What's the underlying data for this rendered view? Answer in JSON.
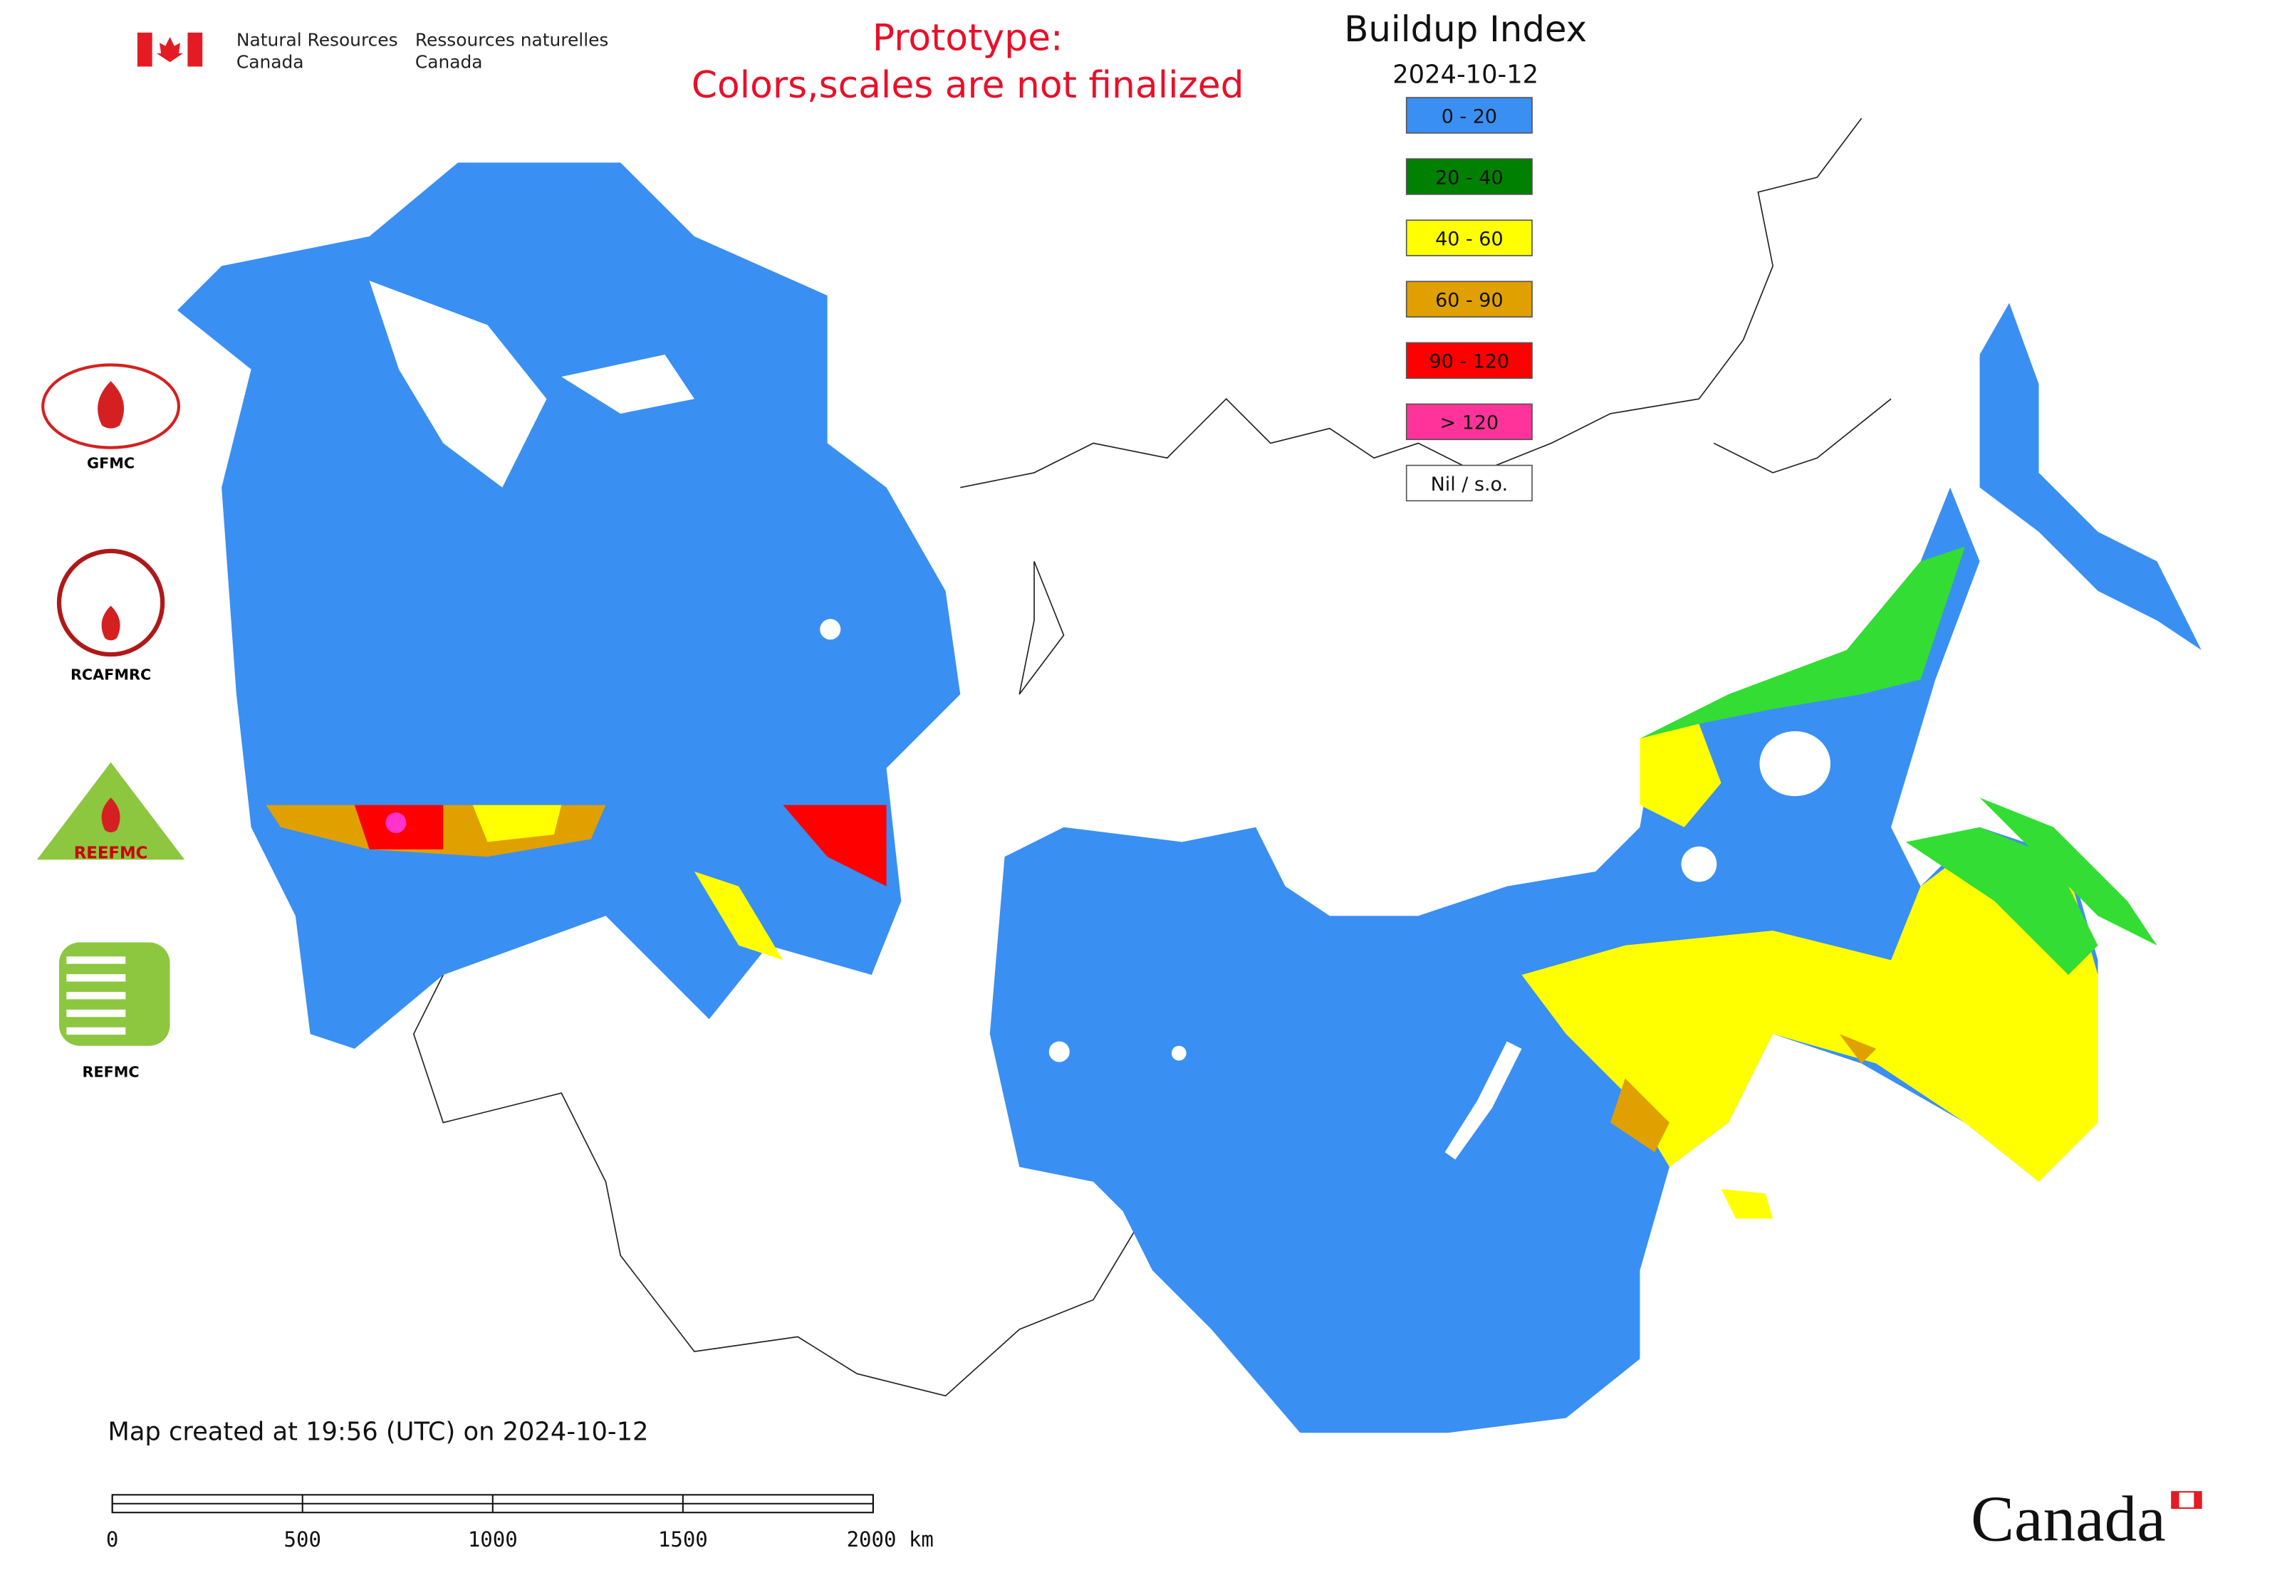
{
  "header": {
    "department_en_1": "Natural Resources",
    "department_en_2": "Canada",
    "department_fr_1": "Ressources naturelles",
    "department_fr_2": "Canada"
  },
  "note": {
    "line1": "Prototype:",
    "line2": "Colors,scales are not finalized"
  },
  "legend": {
    "title": "Buildup Index",
    "date": "2024-10-12",
    "items": [
      {
        "label": "0 - 20",
        "color": "#3a8ff2"
      },
      {
        "label": "20 - 40",
        "color": "#008000"
      },
      {
        "label": "40 - 60",
        "color": "#ffff00"
      },
      {
        "label": "60 - 90",
        "color": "#e0a000"
      },
      {
        "label": "90 - 120",
        "color": "#ff0000"
      },
      {
        "label": "> 120",
        "color": "#ff3399"
      },
      {
        "label": "Nil / s.o.",
        "color": "#ffffff"
      }
    ]
  },
  "logos": {
    "gfmc": "GFMC",
    "rcafmrc": "RCAFMRC",
    "reefmc": "REEFMC",
    "refmc": "REFMC"
  },
  "footer": {
    "created": "Map created at 19:56 (UTC) on 2024-10-12",
    "wordmark": "Canada"
  },
  "scale_bar": {
    "range": [
      0,
      2000
    ],
    "ticks": [
      0,
      500,
      1000,
      1500,
      {
        "value": 2000,
        "label": "2000 km"
      }
    ]
  }
}
